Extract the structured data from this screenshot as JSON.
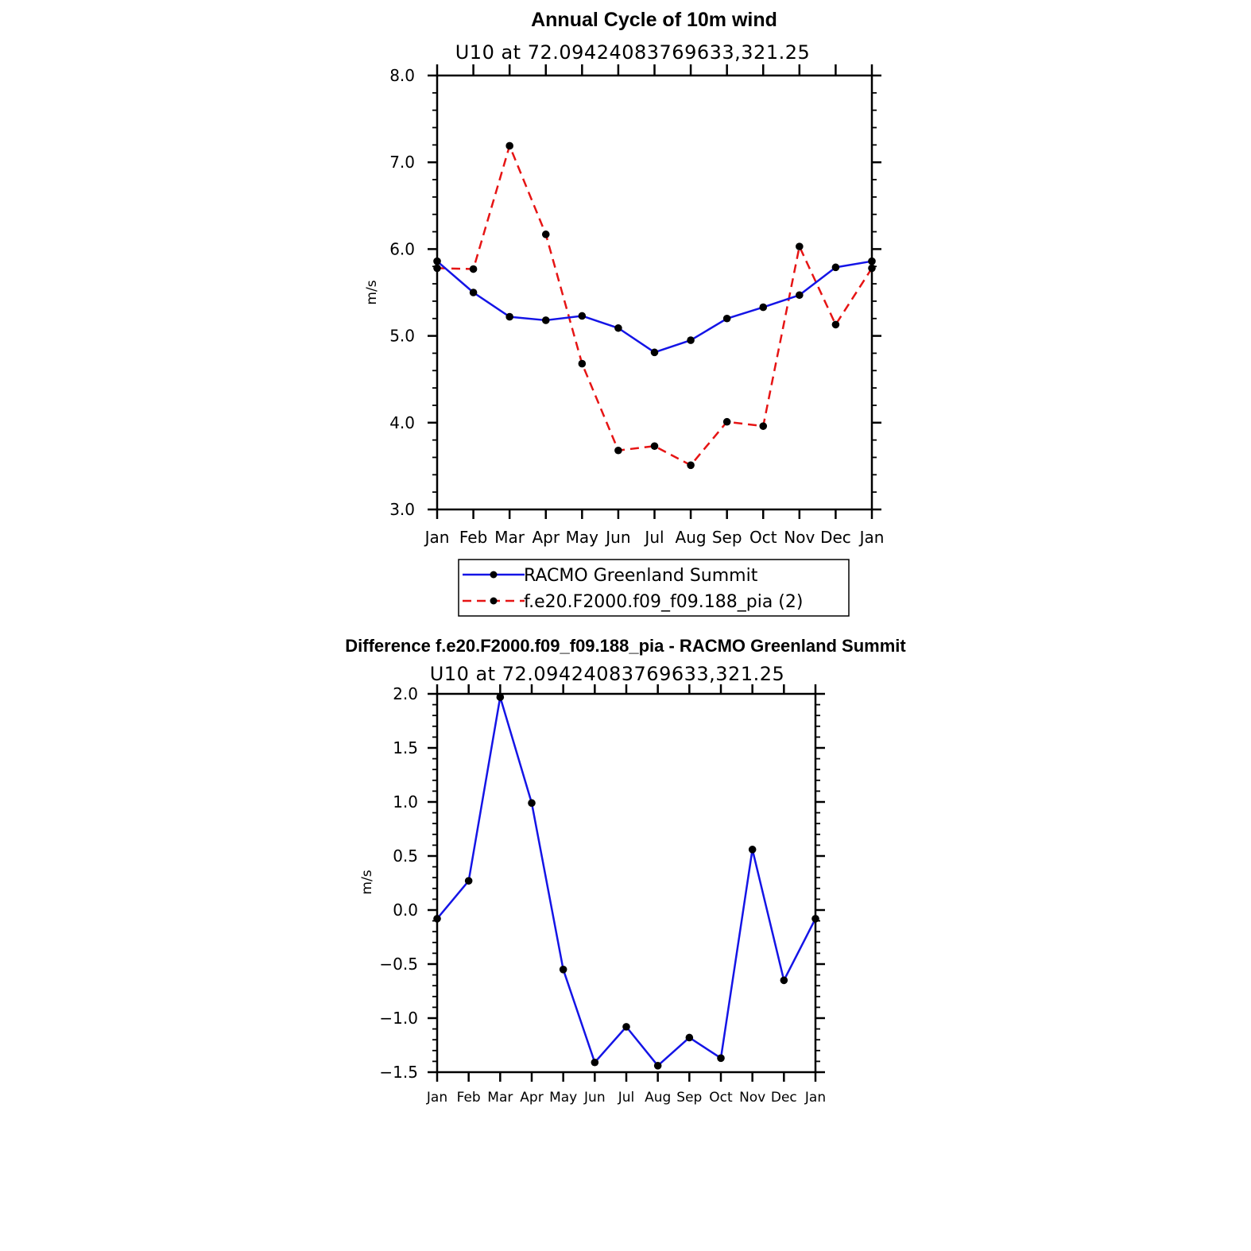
{
  "chart_data": [
    {
      "type": "line",
      "title": "Annual Cycle of 10m wind",
      "subtitle": "U10 at 72.09424083769633,321.25",
      "ylabel": "m/s",
      "xlabel": "",
      "ylim": [
        3.0,
        8.0
      ],
      "ytick_labels": [
        "3.0",
        "4.0",
        "5.0",
        "6.0",
        "7.0",
        "8.0"
      ],
      "categories": [
        "Jan",
        "Feb",
        "Mar",
        "Apr",
        "May",
        "Jun",
        "Jul",
        "Aug",
        "Sep",
        "Oct",
        "Nov",
        "Dec",
        "Jan"
      ],
      "series": [
        {
          "name": "RACMO Greenland Summit",
          "color": "#1414e6",
          "style": "solid",
          "values": [
            5.86,
            5.5,
            5.22,
            5.18,
            5.23,
            5.09,
            4.81,
            4.95,
            5.2,
            5.33,
            5.47,
            5.79,
            5.86
          ]
        },
        {
          "name": "f.e20.F2000.f09_f09.188_pia (2)",
          "color": "#e61414",
          "style": "dashed",
          "values": [
            5.78,
            5.77,
            7.19,
            6.17,
            4.68,
            3.68,
            3.73,
            3.51,
            4.01,
            3.96,
            6.03,
            5.13,
            5.78
          ]
        }
      ],
      "legend": [
        "RACMO Greenland Summit",
        "f.e20.F2000.f09_f09.188_pia (2)"
      ],
      "legend_position": "bottom"
    },
    {
      "type": "line",
      "title": "Difference f.e20.F2000.f09_f09.188_pia - RACMO Greenland Summit",
      "subtitle": "U10 at 72.09424083769633,321.25",
      "ylabel": "m/s",
      "xlabel": "",
      "ylim": [
        -1.5,
        2.0
      ],
      "ytick_labels": [
        "−1.5",
        "−1.0",
        "−0.5",
        "0.0",
        "0.5",
        "1.0",
        "1.5",
        "2.0"
      ],
      "categories": [
        "Jan",
        "Feb",
        "Mar",
        "Apr",
        "May",
        "Jun",
        "Jul",
        "Aug",
        "Sep",
        "Oct",
        "Nov",
        "Dec",
        "Jan"
      ],
      "series": [
        {
          "name": "Difference",
          "color": "#1414e6",
          "style": "solid",
          "values": [
            -0.08,
            0.27,
            1.97,
            0.99,
            -0.55,
            -1.41,
            -1.08,
            -1.44,
            -1.18,
            -1.37,
            0.56,
            -0.65,
            -0.08
          ]
        }
      ]
    }
  ]
}
